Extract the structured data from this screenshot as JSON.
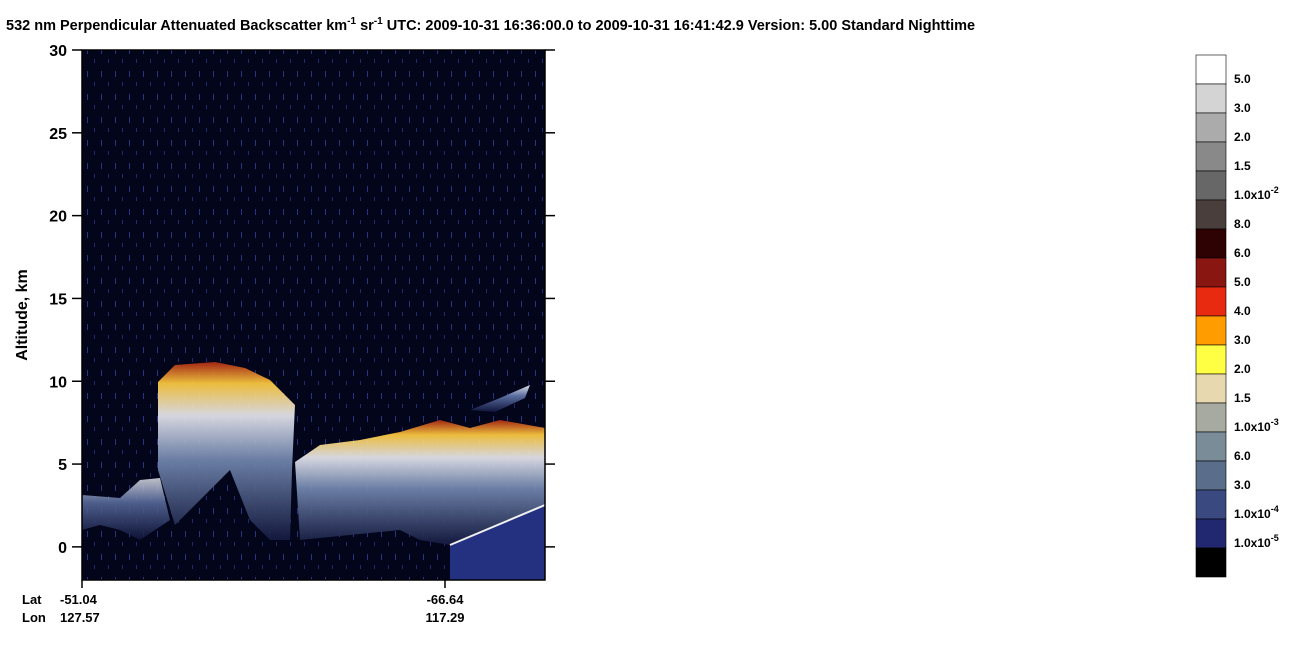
{
  "chart_data": {
    "type": "curtain",
    "title_parts": [
      "532 nm Perpendicular Attenuated Backscatter km",
      "-1",
      " sr",
      "-1",
      "  UTC: 2009-10-31 16:36:00.0 to 2009-10-31 16:41:42.9  Version: 5.00 Standard Nighttime"
    ],
    "ylabel": "Altitude, km",
    "ylim": [
      -2,
      30
    ],
    "yticks": [
      0,
      5,
      10,
      15,
      20,
      25,
      30
    ],
    "x_row_labels": [
      "Lat",
      "Lon"
    ],
    "x_ticks": [
      {
        "lat": "-51.04",
        "lon": "127.57"
      },
      {
        "lat": "-66.64",
        "lon": "117.29"
      }
    ],
    "colorbar": {
      "colors": [
        "#ffffff",
        "#d4d4d4",
        "#ababab",
        "#898989",
        "#676767",
        "#4a3e3c",
        "#2e0202",
        "#8a1612",
        "#e82a10",
        "#ff9c00",
        "#ffff44",
        "#e8d8b0",
        "#a6aaa0",
        "#7b8c99",
        "#5a6e8c",
        "#3a4a80",
        "#222870",
        "#000000"
      ],
      "labels": [
        {
          "base": "5.0"
        },
        {
          "base": "3.0"
        },
        {
          "base": "2.0"
        },
        {
          "base": "1.5"
        },
        {
          "base": "1.0x10",
          "exp": "-2"
        },
        {
          "base": "8.0"
        },
        {
          "base": "6.0"
        },
        {
          "base": "5.0"
        },
        {
          "base": "4.0"
        },
        {
          "base": "3.0"
        },
        {
          "base": "2.0"
        },
        {
          "base": "1.5"
        },
        {
          "base": "1.0x10",
          "exp": "-3"
        },
        {
          "base": "6.0"
        },
        {
          "base": "3.0"
        },
        {
          "base": "1.0x10",
          "exp": "-4"
        },
        {
          "base": "1.0x10",
          "exp": "-5"
        }
      ]
    }
  }
}
